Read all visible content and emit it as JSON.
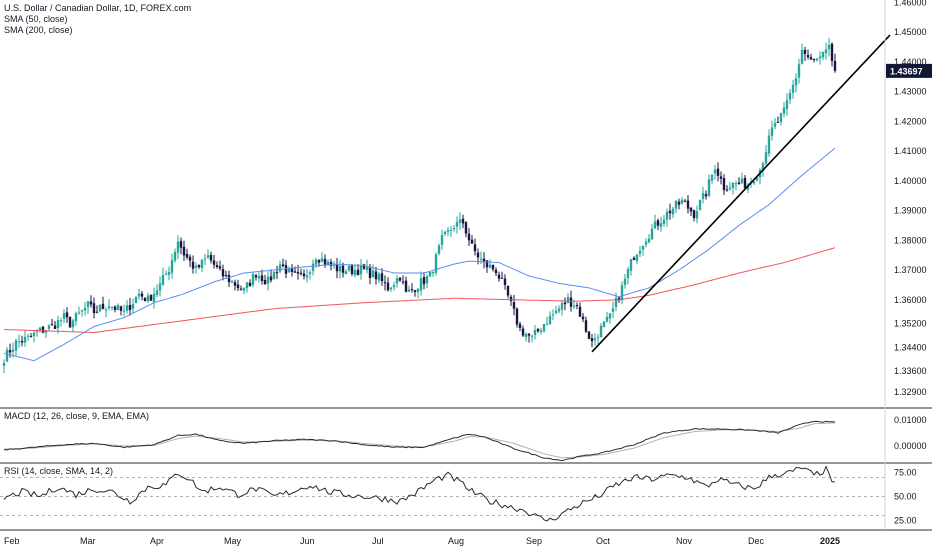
{
  "legends": {
    "title": "U.S. Dollar / Canadian Dollar, 1D, FOREX.com",
    "sma50": "SMA (50, close)",
    "sma200": "SMA (200, close)",
    "macd": "MACD (12, 26, close, 9, EMA, EMA)",
    "rsi": "RSI (14, close, SMA, 14, 2)"
  },
  "colors": {
    "up": "#26a69a",
    "down": "#1a1541",
    "sma50": "#5b8def",
    "sma200": "#f0545a",
    "trendline": "#000000",
    "price_label_bg": "#131736",
    "macd_line": "#2a2a2a",
    "signal_line": "#b0b0b0",
    "rsi_line": "#2a2a2a"
  },
  "chart_data": [
    {
      "type": "candlestick",
      "title": "U.S. Dollar / Canadian Dollar, 1D, FOREX.com",
      "x_ticks": [
        "Feb",
        "Mar",
        "Apr",
        "May",
        "Jun",
        "Jul",
        "Aug",
        "Sep",
        "Oct",
        "Nov",
        "Dec",
        "2025"
      ],
      "y_ticks": [
        "1.46000",
        "1.45000",
        "1.44000",
        "1.43000",
        "1.42000",
        "1.41000",
        "1.40000",
        "1.39000",
        "1.38000",
        "1.37000",
        "1.36000",
        "1.35200",
        "1.34400",
        "1.33600",
        "1.32900"
      ],
      "ylim": [
        1.3236,
        1.4608
      ],
      "last_price_label": "1.43697",
      "last_price": 1.43697,
      "close_anchors": [
        [
          0,
          1.3405
        ],
        [
          4,
          1.3455
        ],
        [
          8,
          1.347
        ],
        [
          12,
          1.3495
        ],
        [
          16,
          1.351
        ],
        [
          20,
          1.354
        ],
        [
          22,
          1.352
        ],
        [
          25,
          1.355
        ],
        [
          28,
          1.358
        ],
        [
          30,
          1.356
        ],
        [
          35,
          1.3585
        ],
        [
          40,
          1.3555
        ],
        [
          45,
          1.362
        ],
        [
          48,
          1.36
        ],
        [
          52,
          1.365
        ],
        [
          55,
          1.3705
        ],
        [
          58,
          1.38
        ],
        [
          60,
          1.3755
        ],
        [
          64,
          1.37
        ],
        [
          68,
          1.3745
        ],
        [
          72,
          1.369
        ],
        [
          76,
          1.366
        ],
        [
          80,
          1.363
        ],
        [
          84,
          1.369
        ],
        [
          88,
          1.366
        ],
        [
          92,
          1.372
        ],
        [
          96,
          1.368
        ],
        [
          100,
          1.367
        ],
        [
          104,
          1.375
        ],
        [
          108,
          1.372
        ],
        [
          112,
          1.37
        ],
        [
          116,
          1.37
        ],
        [
          120,
          1.37
        ],
        [
          124,
          1.368
        ],
        [
          128,
          1.364
        ],
        [
          132,
          1.368
        ],
        [
          134,
          1.362
        ],
        [
          138,
          1.365
        ],
        [
          142,
          1.368
        ],
        [
          146,
          1.38
        ],
        [
          150,
          1.385
        ],
        [
          153,
          1.386
        ],
        [
          156,
          1.3775
        ],
        [
          160,
          1.372
        ],
        [
          164,
          1.37
        ],
        [
          168,
          1.361
        ],
        [
          172,
          1.35
        ],
        [
          176,
          1.347
        ],
        [
          180,
          1.352
        ],
        [
          184,
          1.356
        ],
        [
          188,
          1.36
        ],
        [
          191,
          1.358
        ],
        [
          194,
          1.35
        ],
        [
          196,
          1.3455
        ],
        [
          198,
          1.349
        ],
        [
          202,
          1.354
        ],
        [
          206,
          1.364
        ],
        [
          210,
          1.375
        ],
        [
          214,
          1.381
        ],
        [
          218,
          1.386
        ],
        [
          222,
          1.39
        ],
        [
          226,
          1.393
        ],
        [
          230,
          1.389
        ],
        [
          234,
          1.396
        ],
        [
          237,
          1.405
        ],
        [
          240,
          1.398
        ],
        [
          244,
          1.399
        ],
        [
          248,
          1.399
        ],
        [
          252,
          1.404
        ],
        [
          256,
          1.417
        ],
        [
          260,
          1.423
        ],
        [
          264,
          1.435
        ],
        [
          266,
          1.444
        ],
        [
          269,
          1.44
        ],
        [
          272,
          1.441
        ],
        [
          275,
          1.444
        ],
        [
          277,
          1.43697
        ]
      ],
      "sma50_anchors": [
        [
          0,
          1.342
        ],
        [
          10,
          1.3395
        ],
        [
          20,
          1.345
        ],
        [
          30,
          1.351
        ],
        [
          40,
          1.354
        ],
        [
          50,
          1.359
        ],
        [
          60,
          1.362
        ],
        [
          70,
          1.366
        ],
        [
          80,
          1.369
        ],
        [
          90,
          1.37
        ],
        [
          100,
          1.371
        ],
        [
          110,
          1.372
        ],
        [
          120,
          1.3715
        ],
        [
          130,
          1.369
        ],
        [
          140,
          1.369
        ],
        [
          150,
          1.372
        ],
        [
          155,
          1.373
        ],
        [
          165,
          1.3725
        ],
        [
          175,
          1.368
        ],
        [
          185,
          1.3655
        ],
        [
          195,
          1.364
        ],
        [
          205,
          1.361
        ],
        [
          215,
          1.364
        ],
        [
          225,
          1.37
        ],
        [
          235,
          1.377
        ],
        [
          245,
          1.385
        ],
        [
          255,
          1.392
        ],
        [
          265,
          1.401
        ],
        [
          277,
          1.411
        ]
      ],
      "sma200_anchors": [
        [
          0,
          1.35
        ],
        [
          30,
          1.349
        ],
        [
          60,
          1.353
        ],
        [
          90,
          1.357
        ],
        [
          120,
          1.359
        ],
        [
          150,
          1.3605
        ],
        [
          170,
          1.36
        ],
        [
          190,
          1.3595
        ],
        [
          205,
          1.36
        ],
        [
          215,
          1.3615
        ],
        [
          230,
          1.365
        ],
        [
          245,
          1.369
        ],
        [
          260,
          1.3725
        ],
        [
          277,
          1.3775
        ]
      ]
    },
    {
      "type": "line",
      "title": "MACD (12, 26, close, 9, EMA, EMA)",
      "y_ticks": [
        "0.01000",
        "0.00000"
      ],
      "ylim": [
        -0.0065,
        0.0145
      ],
      "macd_anchors": [
        [
          0,
          -0.0015
        ],
        [
          10,
          -0.0005
        ],
        [
          20,
          0.0005
        ],
        [
          30,
          0.001
        ],
        [
          40,
          -0.0005
        ],
        [
          50,
          0.0005
        ],
        [
          58,
          0.004
        ],
        [
          64,
          0.0045
        ],
        [
          72,
          0.002
        ],
        [
          80,
          0.001
        ],
        [
          90,
          0.002
        ],
        [
          100,
          0.0025
        ],
        [
          110,
          0.002
        ],
        [
          120,
          0.0005
        ],
        [
          130,
          -0.0005
        ],
        [
          140,
          -0.0005
        ],
        [
          150,
          0.003
        ],
        [
          155,
          0.0045
        ],
        [
          160,
          0.0035
        ],
        [
          170,
          -0.001
        ],
        [
          180,
          -0.0045
        ],
        [
          186,
          -0.0055
        ],
        [
          192,
          -0.004
        ],
        [
          200,
          -0.0025
        ],
        [
          210,
          0.0005
        ],
        [
          220,
          0.005
        ],
        [
          230,
          0.0065
        ],
        [
          240,
          0.0065
        ],
        [
          250,
          0.006
        ],
        [
          258,
          0.005
        ],
        [
          265,
          0.008
        ],
        [
          270,
          0.0095
        ],
        [
          277,
          0.009
        ]
      ],
      "signal_anchors": [
        [
          0,
          -0.0012
        ],
        [
          10,
          -0.0008
        ],
        [
          20,
          0.0002
        ],
        [
          30,
          0.0008
        ],
        [
          40,
          0.0
        ],
        [
          50,
          0.0002
        ],
        [
          58,
          0.0028
        ],
        [
          64,
          0.0038
        ],
        [
          72,
          0.0028
        ],
        [
          80,
          0.0015
        ],
        [
          90,
          0.0018
        ],
        [
          100,
          0.0022
        ],
        [
          110,
          0.002
        ],
        [
          120,
          0.001
        ],
        [
          130,
          0.0
        ],
        [
          140,
          -0.0004
        ],
        [
          150,
          0.0018
        ],
        [
          155,
          0.0035
        ],
        [
          160,
          0.0035
        ],
        [
          170,
          0.001
        ],
        [
          180,
          -0.003
        ],
        [
          186,
          -0.0045
        ],
        [
          192,
          -0.0042
        ],
        [
          200,
          -0.0032
        ],
        [
          210,
          -0.0008
        ],
        [
          220,
          0.0032
        ],
        [
          230,
          0.0055
        ],
        [
          240,
          0.0062
        ],
        [
          250,
          0.006
        ],
        [
          258,
          0.0055
        ],
        [
          265,
          0.0068
        ],
        [
          270,
          0.0085
        ],
        [
          277,
          0.0088
        ]
      ]
    },
    {
      "type": "line",
      "title": "RSI (14, close, SMA, 14, 2)",
      "y_ticks": [
        "75.00",
        "50.00",
        "25.00"
      ],
      "ylim": [
        15,
        85
      ],
      "bands": [
        70,
        50,
        30
      ],
      "rsi_anchors": [
        [
          0,
          48
        ],
        [
          6,
          55
        ],
        [
          12,
          50
        ],
        [
          18,
          60
        ],
        [
          24,
          52
        ],
        [
          30,
          58
        ],
        [
          36,
          55
        ],
        [
          42,
          45
        ],
        [
          48,
          60
        ],
        [
          54,
          62
        ],
        [
          58,
          75
        ],
        [
          62,
          68
        ],
        [
          66,
          55
        ],
        [
          72,
          60
        ],
        [
          78,
          52
        ],
        [
          84,
          58
        ],
        [
          90,
          50
        ],
        [
          96,
          55
        ],
        [
          102,
          62
        ],
        [
          108,
          55
        ],
        [
          114,
          52
        ],
        [
          120,
          50
        ],
        [
          126,
          48
        ],
        [
          132,
          45
        ],
        [
          138,
          55
        ],
        [
          144,
          68
        ],
        [
          148,
          72
        ],
        [
          152,
          65
        ],
        [
          156,
          55
        ],
        [
          162,
          45
        ],
        [
          168,
          40
        ],
        [
          174,
          35
        ],
        [
          178,
          28
        ],
        [
          182,
          25
        ],
        [
          186,
          32
        ],
        [
          192,
          42
        ],
        [
          198,
          50
        ],
        [
          204,
          62
        ],
        [
          210,
          70
        ],
        [
          216,
          68
        ],
        [
          222,
          72
        ],
        [
          228,
          70
        ],
        [
          234,
          60
        ],
        [
          238,
          68
        ],
        [
          244,
          62
        ],
        [
          250,
          58
        ],
        [
          256,
          72
        ],
        [
          262,
          75
        ],
        [
          266,
          80
        ],
        [
          270,
          72
        ],
        [
          274,
          78
        ],
        [
          277,
          62
        ]
      ]
    }
  ]
}
